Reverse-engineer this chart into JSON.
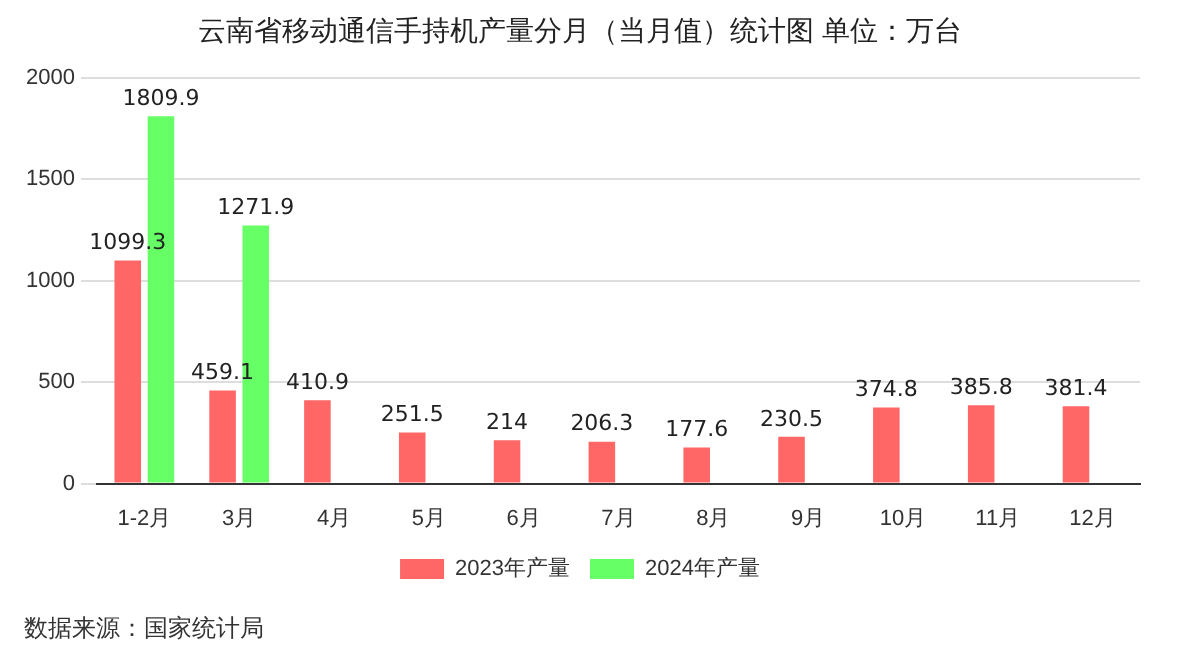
{
  "chart_data": {
    "type": "bar",
    "title": "云南省移动通信手持机产量分月（当月值）统计图 单位：万台",
    "categories": [
      "1-2月",
      "3月",
      "4月",
      "5月",
      "6月",
      "7月",
      "8月",
      "9月",
      "10月",
      "11月",
      "12月"
    ],
    "series": [
      {
        "name": "2023年产量",
        "color": "#ff6666",
        "values": [
          1099.3,
          459.1,
          410.9,
          251.5,
          214,
          206.3,
          177.6,
          230.5,
          374.8,
          385.8,
          381.4
        ]
      },
      {
        "name": "2024年产量",
        "color": "#66ff66",
        "values": [
          1809.9,
          1271.9,
          null,
          null,
          null,
          null,
          null,
          null,
          null,
          null,
          null
        ]
      }
    ],
    "ylim": [
      0,
      2000
    ],
    "yticks": [
      0,
      500,
      1000,
      1500,
      2000
    ],
    "grid": "y",
    "legend": "bottom",
    "data_labels": true,
    "annotations": [
      "数据来源：国家统计局"
    ]
  }
}
